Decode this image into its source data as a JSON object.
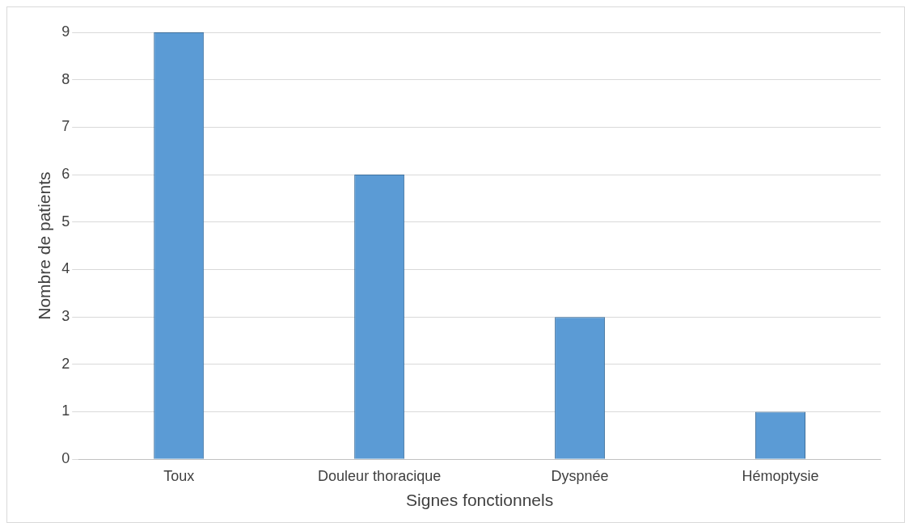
{
  "chart_data": {
    "type": "bar",
    "xlabel": "Signes fonctionnels",
    "ylabel": "Nombre de patients",
    "categories": [
      "Toux",
      "Douleur thoracique",
      "Dyspnée",
      "Hémoptysie"
    ],
    "values": [
      9,
      6,
      3,
      1
    ],
    "color": "#5b9bd5",
    "ylim": [
      0,
      9
    ],
    "yticks": [
      0,
      1,
      2,
      3,
      4,
      5,
      6,
      7,
      8,
      9
    ],
    "grid": "y"
  }
}
